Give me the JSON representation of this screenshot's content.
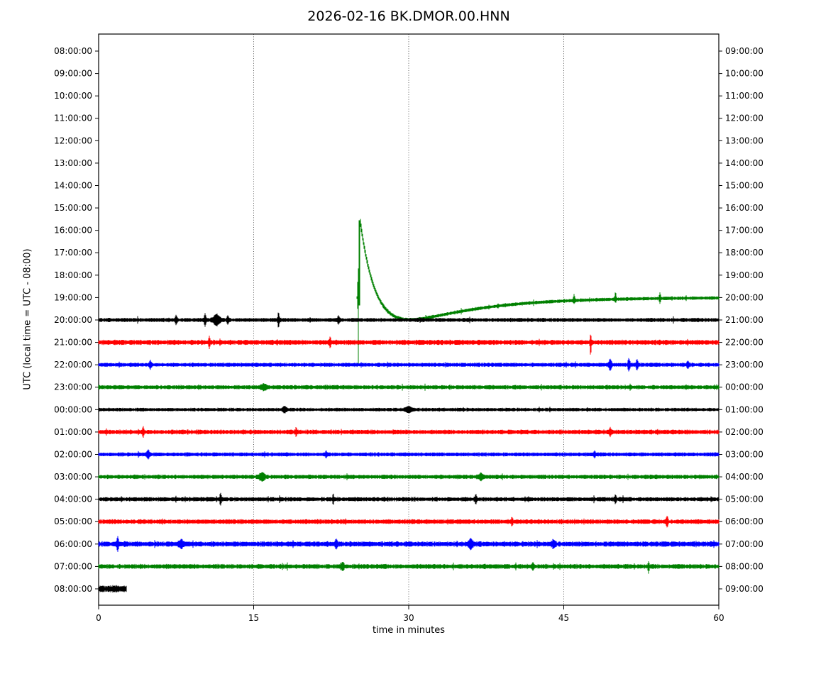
{
  "chart_data": {
    "type": "helicorder",
    "title": "2026-02-16 BK.DMOR.00.HNN",
    "xlabel": "time in minutes",
    "ylabel": "UTC (local time = UTC - 08:00)",
    "x_ticks": [
      0,
      15,
      30,
      45,
      60
    ],
    "x_grid_minutes": [
      15,
      30,
      45
    ],
    "x_range_minutes": [
      0,
      60
    ],
    "interval_minutes": 60,
    "rows_per_page": 25,
    "color_cycle": [
      "#000000",
      "#ff0000",
      "#0000ff",
      "#008000"
    ],
    "grid": {
      "vertical_dotted": true,
      "horizontal": false
    },
    "rows": [
      {
        "utc_label": "08:00:00",
        "end_label": "09:00:00",
        "color": "#000000",
        "has_data": false
      },
      {
        "utc_label": "09:00:00",
        "end_label": "10:00:00",
        "color": "#ff0000",
        "has_data": false
      },
      {
        "utc_label": "10:00:00",
        "end_label": "11:00:00",
        "color": "#0000ff",
        "has_data": false
      },
      {
        "utc_label": "11:00:00",
        "end_label": "12:00:00",
        "color": "#008000",
        "has_data": false
      },
      {
        "utc_label": "12:00:00",
        "end_label": "13:00:00",
        "color": "#000000",
        "has_data": false
      },
      {
        "utc_label": "13:00:00",
        "end_label": "14:00:00",
        "color": "#ff0000",
        "has_data": false
      },
      {
        "utc_label": "14:00:00",
        "end_label": "15:00:00",
        "color": "#0000ff",
        "has_data": false
      },
      {
        "utc_label": "15:00:00",
        "end_label": "16:00:00",
        "color": "#008000",
        "has_data": false
      },
      {
        "utc_label": "16:00:00",
        "end_label": "17:00:00",
        "color": "#000000",
        "has_data": false
      },
      {
        "utc_label": "17:00:00",
        "end_label": "18:00:00",
        "color": "#ff0000",
        "has_data": false
      },
      {
        "utc_label": "18:00:00",
        "end_label": "19:00:00",
        "color": "#0000ff",
        "has_data": false
      },
      {
        "utc_label": "19:00:00",
        "end_label": "20:00:00",
        "color": "#008000",
        "has_data": true,
        "start_min": 25.0,
        "end_min": 60,
        "noise_amp": 0.063,
        "transient": {
          "onset_min": 25.1,
          "curve_start_min": 25.33,
          "peak_rows": 3.45,
          "downspike_rows": 3.04,
          "coef_fast_rows": 5.99,
          "decay_fast_min": 1.6,
          "coef_slow_rows": 2.54,
          "decay_slow_min": 7.0,
          "undershoot_rows": 0.98
        },
        "events": [
          {
            "t": 46.0,
            "up": 0.22,
            "down": 0.08,
            "w": 0.08
          },
          {
            "t": 50.0,
            "up": 0.25,
            "down": 0.08,
            "w": 0.08
          },
          {
            "t": 54.3,
            "up": 0.19,
            "down": 0.16,
            "w": 0.08
          }
        ]
      },
      {
        "utc_label": "20:00:00",
        "end_label": "21:00:00",
        "color": "#000000",
        "has_data": true,
        "start_min": 0,
        "end_min": 60,
        "noise_amp": 0.073,
        "events": [
          {
            "t": 7.5,
            "up": 0.16,
            "down": 0.16,
            "w": 0.1
          },
          {
            "t": 10.3,
            "up": 0.22,
            "down": 0.22,
            "w": 0.1
          },
          {
            "t": 11.4,
            "up": 0.19,
            "down": 0.19,
            "w": 0.35
          },
          {
            "t": 12.5,
            "up": 0.13,
            "down": 0.13,
            "w": 0.1
          },
          {
            "t": 17.4,
            "up": 0.28,
            "down": 0.28,
            "w": 0.08
          },
          {
            "t": 23.2,
            "up": 0.13,
            "down": 0.13,
            "w": 0.1
          }
        ]
      },
      {
        "utc_label": "21:00:00",
        "end_label": "22:00:00",
        "color": "#ff0000",
        "has_data": true,
        "start_min": 0,
        "end_min": 60,
        "noise_amp": 0.089,
        "events": [
          {
            "t": 10.7,
            "up": 0.22,
            "down": 0.22,
            "w": 0.08
          },
          {
            "t": 22.4,
            "up": 0.16,
            "down": 0.16,
            "w": 0.1
          },
          {
            "t": 47.6,
            "up": 0.28,
            "down": 0.51,
            "w": 0.07
          }
        ]
      },
      {
        "utc_label": "22:00:00",
        "end_label": "23:00:00",
        "color": "#0000ff",
        "has_data": true,
        "start_min": 0,
        "end_min": 60,
        "noise_amp": 0.073,
        "events": [
          {
            "t": 5.0,
            "up": 0.13,
            "down": 0.13,
            "w": 0.1
          },
          {
            "t": 49.5,
            "up": 0.19,
            "down": 0.19,
            "w": 0.15
          },
          {
            "t": 51.3,
            "up": 0.22,
            "down": 0.22,
            "w": 0.12
          },
          {
            "t": 52.1,
            "up": 0.19,
            "down": 0.19,
            "w": 0.1
          },
          {
            "t": 57.0,
            "up": 0.13,
            "down": 0.13,
            "w": 0.1
          }
        ]
      },
      {
        "utc_label": "23:00:00",
        "end_label": "00:00:00",
        "color": "#008000",
        "has_data": true,
        "start_min": 0,
        "end_min": 60,
        "noise_amp": 0.076,
        "events": [
          {
            "t": 16.0,
            "up": 0.1,
            "down": 0.1,
            "w": 0.3
          }
        ]
      },
      {
        "utc_label": "00:00:00",
        "end_label": "01:00:00",
        "color": "#000000",
        "has_data": true,
        "start_min": 0,
        "end_min": 60,
        "noise_amp": 0.063,
        "events": [
          {
            "t": 18.0,
            "up": 0.1,
            "down": 0.1,
            "w": 0.2
          },
          {
            "t": 30.0,
            "up": 0.1,
            "down": 0.1,
            "w": 0.3
          }
        ]
      },
      {
        "utc_label": "01:00:00",
        "end_label": "02:00:00",
        "color": "#ff0000",
        "has_data": true,
        "start_min": 0,
        "end_min": 60,
        "noise_amp": 0.082,
        "events": [
          {
            "t": 4.3,
            "up": 0.19,
            "down": 0.19,
            "w": 0.08
          },
          {
            "t": 19.1,
            "up": 0.16,
            "down": 0.16,
            "w": 0.08
          },
          {
            "t": 49.5,
            "up": 0.13,
            "down": 0.13,
            "w": 0.1
          }
        ]
      },
      {
        "utc_label": "02:00:00",
        "end_label": "03:00:00",
        "color": "#0000ff",
        "has_data": true,
        "start_min": 0,
        "end_min": 60,
        "noise_amp": 0.073,
        "events": [
          {
            "t": 4.8,
            "up": 0.16,
            "down": 0.16,
            "w": 0.12
          },
          {
            "t": 22.0,
            "up": 0.1,
            "down": 0.1,
            "w": 0.1
          },
          {
            "t": 48.0,
            "up": 0.1,
            "down": 0.1,
            "w": 0.1
          }
        ]
      },
      {
        "utc_label": "03:00:00",
        "end_label": "04:00:00",
        "color": "#008000",
        "has_data": true,
        "start_min": 0,
        "end_min": 60,
        "noise_amp": 0.076,
        "events": [
          {
            "t": 15.8,
            "up": 0.13,
            "down": 0.13,
            "w": 0.3
          },
          {
            "t": 37.0,
            "up": 0.1,
            "down": 0.1,
            "w": 0.2
          }
        ]
      },
      {
        "utc_label": "04:00:00",
        "end_label": "05:00:00",
        "color": "#000000",
        "has_data": true,
        "start_min": 0,
        "end_min": 60,
        "noise_amp": 0.076,
        "events": [
          {
            "t": 11.8,
            "up": 0.19,
            "down": 0.19,
            "w": 0.08
          },
          {
            "t": 22.7,
            "up": 0.19,
            "down": 0.19,
            "w": 0.08
          },
          {
            "t": 36.5,
            "up": 0.16,
            "down": 0.16,
            "w": 0.1
          },
          {
            "t": 50.0,
            "up": 0.13,
            "down": 0.13,
            "w": 0.1
          }
        ]
      },
      {
        "utc_label": "05:00:00",
        "end_label": "06:00:00",
        "color": "#ff0000",
        "has_data": true,
        "start_min": 0,
        "end_min": 60,
        "noise_amp": 0.082,
        "events": [
          {
            "t": 40.0,
            "up": 0.13,
            "down": 0.13,
            "w": 0.1
          },
          {
            "t": 55.0,
            "up": 0.19,
            "down": 0.19,
            "w": 0.1
          }
        ]
      },
      {
        "utc_label": "06:00:00",
        "end_label": "07:00:00",
        "color": "#0000ff",
        "has_data": true,
        "start_min": 0,
        "end_min": 60,
        "noise_amp": 0.095,
        "events": [
          {
            "t": 1.85,
            "up": 0.25,
            "down": 0.25,
            "w": 0.1
          },
          {
            "t": 8.0,
            "up": 0.13,
            "down": 0.13,
            "w": 0.2
          },
          {
            "t": 23.0,
            "up": 0.13,
            "down": 0.13,
            "w": 0.15
          },
          {
            "t": 36.0,
            "up": 0.16,
            "down": 0.16,
            "w": 0.2
          },
          {
            "t": 44.0,
            "up": 0.13,
            "down": 0.13,
            "w": 0.15
          }
        ]
      },
      {
        "utc_label": "07:00:00",
        "end_label": "08:00:00",
        "color": "#008000",
        "has_data": true,
        "start_min": 0,
        "end_min": 60,
        "noise_amp": 0.085,
        "events": [
          {
            "t": 23.6,
            "up": 0.13,
            "down": 0.13,
            "w": 0.15
          },
          {
            "t": 42.0,
            "up": 0.1,
            "down": 0.1,
            "w": 0.1
          },
          {
            "t": 53.2,
            "up": 0.13,
            "down": 0.22,
            "w": 0.08
          }
        ]
      },
      {
        "utc_label": "08:00:00",
        "end_label": "09:00:00",
        "color": "#000000",
        "has_data": true,
        "start_min": 0,
        "end_min": 2.68,
        "noise_amp": 0.12,
        "events": []
      }
    ]
  }
}
